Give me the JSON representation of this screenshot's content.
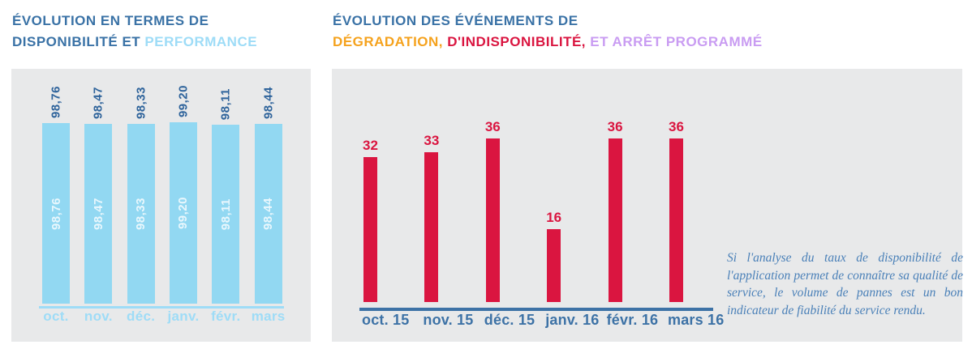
{
  "left_chart": {
    "title_line1": "ÉVOLUTION EN TERMES DE",
    "title_line2_dark": "DISPONIBILITÉ ET ",
    "title_line2_accent": "PERFORMANCE"
  },
  "right_chart": {
    "title_line1": "ÉVOLUTION DES ÉVÉNEMENTS DE",
    "title_orange": "DÉGRADATION,",
    "title_red": " D'INDISPONIBILITÉ,",
    "title_purple": " ET ARRÊT PROGRAMMÉ"
  },
  "annotation": {
    "text": "Si l'analyse du taux de disponibilité de l'application permet de connaître sa qualité de service, le volume de pannes est un bon indicateur de fiabilité du service rendu."
  },
  "chart_data": [
    {
      "id": "availability-performance",
      "type": "bar",
      "title": "ÉVOLUTION EN TERMES DE DISPONIBILITÉ ET PERFORMANCE",
      "categories": [
        "oct.",
        "nov.",
        "déc.",
        "janv.",
        "févr.",
        "mars"
      ],
      "values": [
        98.76,
        98.47,
        98.33,
        99.2,
        98.11,
        98.44
      ],
      "value_labels": [
        "98,76",
        "98,47",
        "98,33",
        "99,20",
        "98,11",
        "98,44"
      ],
      "ylim": [
        0,
        100
      ],
      "grid": false,
      "legend": "none",
      "bar_color": "#92d8f2",
      "value_label_color": "#2e639b",
      "axis_color": "#9edcf7"
    },
    {
      "id": "degradation-events",
      "type": "bar",
      "title": "ÉVOLUTION DES ÉVÉNEMENTS DE DÉGRADATION, D'INDISPONIBILITÉ, ET ARRÊT PROGRAMMÉ",
      "categories": [
        "oct. 15",
        "nov. 15",
        "déc. 15",
        "janv. 16",
        "févr. 16",
        "mars 16"
      ],
      "values": [
        32,
        33,
        36,
        16,
        36,
        36
      ],
      "value_labels": [
        "32",
        "33",
        "36",
        "16",
        "36",
        "36"
      ],
      "ylim": [
        0,
        36
      ],
      "grid": false,
      "legend": "none",
      "bar_color": "#da1540",
      "value_label_color": "#da1540",
      "axis_color": "#3d72a6"
    }
  ],
  "colors": {
    "title_blue": "#3a72a6",
    "light_blue": "#9edcf7",
    "bar_blue": "#92d8f2",
    "orange": "#f5a21d",
    "red": "#da1540",
    "purple": "#c99cf2",
    "panel_gray": "#e8e9ea",
    "annotation_blue": "#4a80b8"
  }
}
